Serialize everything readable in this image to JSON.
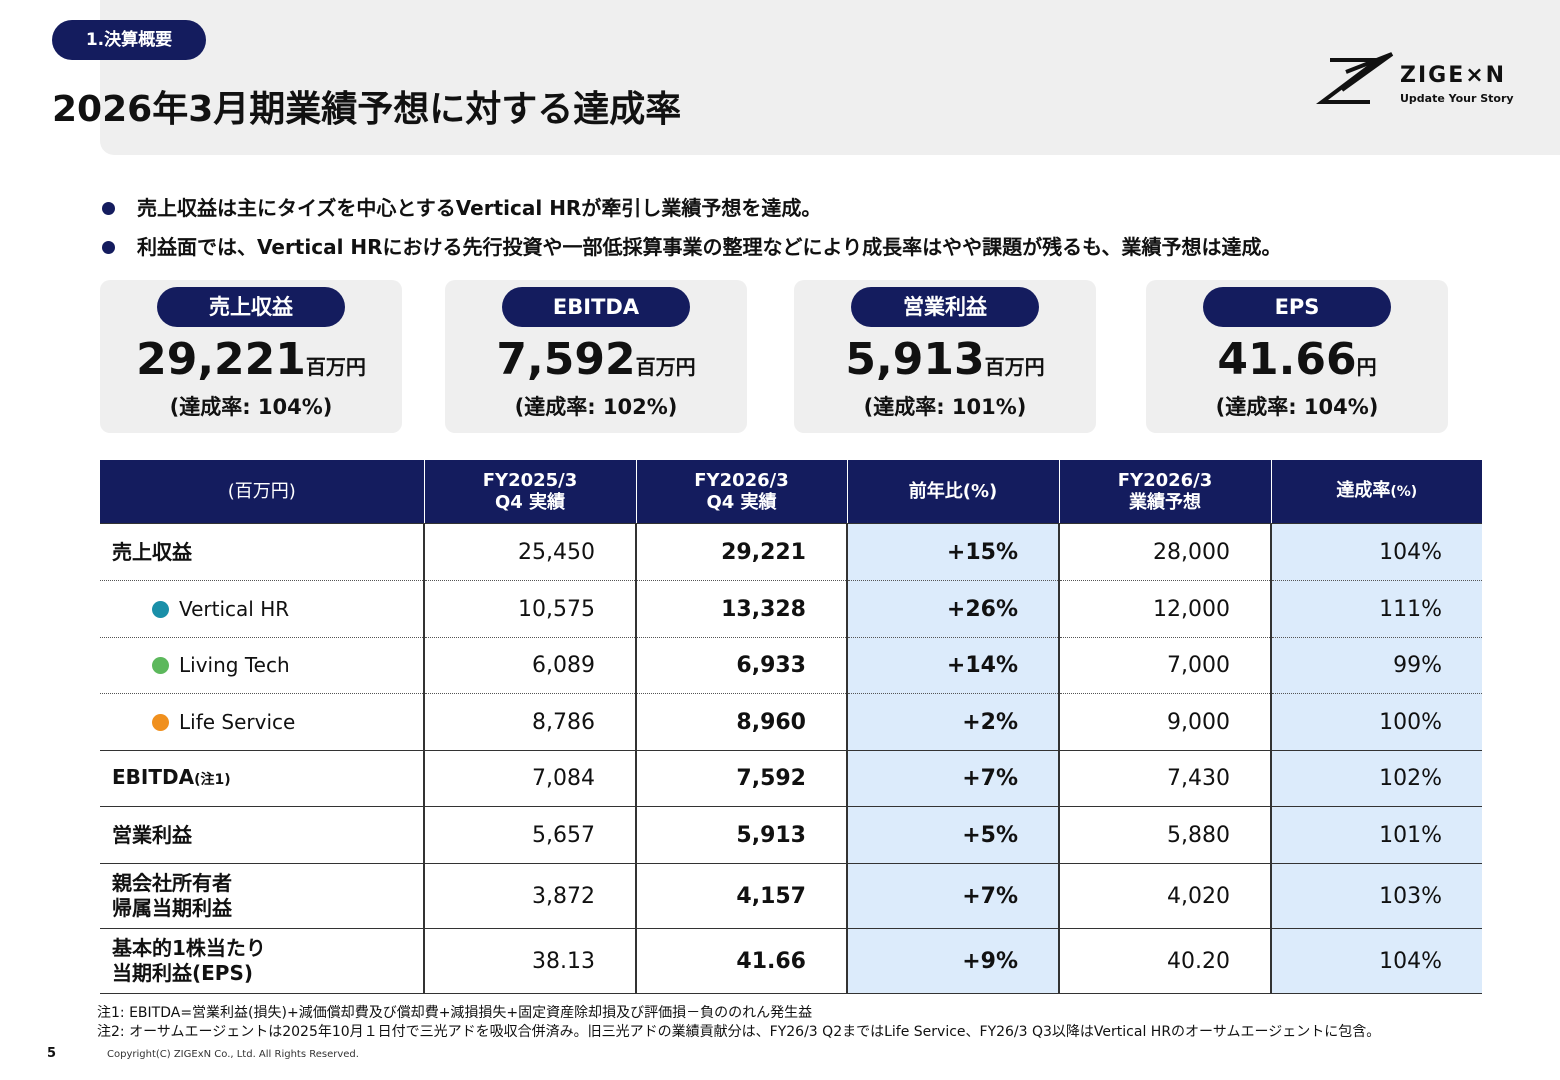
{
  "header": {
    "section": "1.決算概要",
    "title": "2026年3月期業績予想に対する達成率",
    "logo": {
      "name": "ZIGE×N",
      "tagline": "Update Your Story"
    }
  },
  "bullets": [
    "売上収益は主にタイズを中心とするVertical HRが牽引し業績予想を達成。",
    "利益面では、Vertical HRにおける先行投資や一部低採算事業の整理などにより成長率はやや課題が残るも、業績予想は達成。"
  ],
  "kpis": [
    {
      "label": "売上収益",
      "value": "29,221",
      "unit": "百万円",
      "rate": "(達成率: 104%)"
    },
    {
      "label": "EBITDA",
      "value": "7,592",
      "unit": "百万円",
      "rate": "(達成率: 102%)"
    },
    {
      "label": "営業利益",
      "value": "5,913",
      "unit": "百万円",
      "rate": "(達成率: 101%)"
    },
    {
      "label": "EPS",
      "value": "41.66",
      "unit": "円",
      "rate": "(達成率: 104%)"
    }
  ],
  "table": {
    "header": [
      {
        "text": "(百万円)"
      },
      {
        "text": "FY2025/3\nQ4 実績"
      },
      {
        "text": "FY2026/3\nQ4 実績"
      },
      {
        "text": "前年比(%)"
      },
      {
        "text": "FY2026/3\n業績予想"
      },
      {
        "text": "達成率",
        "note": "(%)"
      }
    ],
    "rows": [
      {
        "label": "売上収益",
        "cells": [
          "25,450",
          "29,221",
          "+15%",
          "28,000",
          "104%"
        ]
      },
      {
        "label": "Vertical HR",
        "dot": "#1a8fa8",
        "cells": [
          "10,575",
          "13,328",
          "+26%",
          "12,000",
          "111%"
        ]
      },
      {
        "label": "Living Tech",
        "dot": "#5cb85c",
        "cells": [
          "6,089",
          "6,933",
          "+14%",
          "7,000",
          "99%"
        ]
      },
      {
        "label": "Life Service",
        "dot": "#f0901e",
        "cells": [
          "8,786",
          "8,960",
          "+2%",
          "9,000",
          "100%"
        ]
      },
      {
        "label": "EBITDA",
        "note": "(注1)",
        "cells": [
          "7,084",
          "7,592",
          "+7%",
          "7,430",
          "102%"
        ]
      },
      {
        "label": "営業利益",
        "cells": [
          "5,657",
          "5,913",
          "+5%",
          "5,880",
          "101%"
        ]
      },
      {
        "label": "親会社所有者\n帰属当期利益",
        "cells": [
          "3,872",
          "4,157",
          "+7%",
          "4,020",
          "103%"
        ]
      },
      {
        "label": "基本的1株当たり\n当期利益(EPS)",
        "cells": [
          "38.13",
          "41.66",
          "+9%",
          "40.20",
          "104%"
        ]
      }
    ]
  },
  "notes": [
    "注1: EBITDA=営業利益(損失)+減価償却費及び償却費+減損損失+固定資産除却損及び評価損－負ののれん発生益",
    "注2: オーサムエージェントは2025年10月１日付で三光アドを吸収合併済み。旧三光アドの業績貢献分は、FY26/3 Q2まではLife Service、FY26/3 Q3以降はVertical HRのオーサムエージェントに包含。"
  ],
  "footer": {
    "page": "5",
    "copyright": "Copyright(C) ZIGExN Co., Ltd. All Rights Reserved."
  }
}
